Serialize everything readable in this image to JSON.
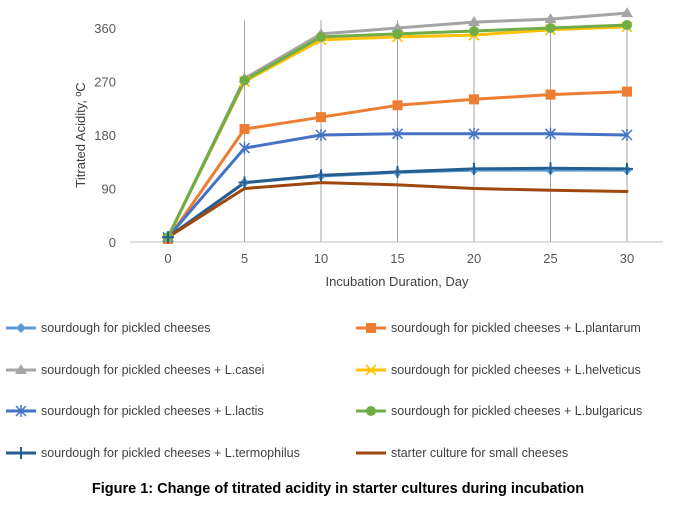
{
  "chart_data": {
    "type": "line",
    "title": "",
    "xlabel": "Incubation Duration, Day",
    "ylabel": "Titrated Acidity, ºC",
    "x": [
      0,
      5,
      10,
      15,
      20,
      25,
      30
    ],
    "xticks": [
      "0",
      "5",
      "10",
      "15",
      "20",
      "25",
      "30"
    ],
    "yticks": [
      "0",
      "90",
      "180",
      "270",
      "360"
    ],
    "ylim": [
      0,
      390
    ],
    "grid": "vertical",
    "legend_position": "bottom",
    "series": [
      {
        "name": "sourdough for pickled cheeses",
        "values": [
          8,
          100,
          111,
          117,
          121,
          121,
          121
        ],
        "color": "#5B9BD5",
        "marker": "diamond"
      },
      {
        "name": "sourdough for pickled cheeses + L.plantarum",
        "values": [
          5,
          190,
          210,
          230,
          240,
          248,
          253
        ],
        "color": "#ED7D31",
        "marker": "square"
      },
      {
        "name": "sourdough for pickled cheeses + L.casei",
        "values": [
          8,
          275,
          350,
          360,
          370,
          375,
          385
        ],
        "color": "#A5A5A5",
        "marker": "triangle"
      },
      {
        "name": "sourdough for pickled cheeses + L.helveticus",
        "values": [
          8,
          270,
          340,
          345,
          348,
          357,
          362
        ],
        "color": "#FFC000",
        "marker": "x"
      },
      {
        "name": "sourdough for pickled cheeses + L.lactis",
        "values": [
          8,
          158,
          180,
          182,
          182,
          182,
          180
        ],
        "color": "#4472C4",
        "marker": "star"
      },
      {
        "name": "sourdough for pickled cheeses + L.bulgaricus",
        "values": [
          8,
          272,
          345,
          350,
          355,
          360,
          365
        ],
        "color": "#70AD47",
        "marker": "circle"
      },
      {
        "name": "sourdough for pickled cheeses + L.termophilus",
        "values": [
          8,
          100,
          112,
          118,
          123,
          124,
          123
        ],
        "color": "#255E91",
        "marker": "plus"
      },
      {
        "name": "starter culture for small cheeses",
        "values": [
          8,
          90,
          100,
          96,
          90,
          87,
          85
        ],
        "color": "#9E480E",
        "marker": "none"
      }
    ]
  },
  "caption": "Figure 1: Change of titrated acidity in starter cultures during incubation"
}
